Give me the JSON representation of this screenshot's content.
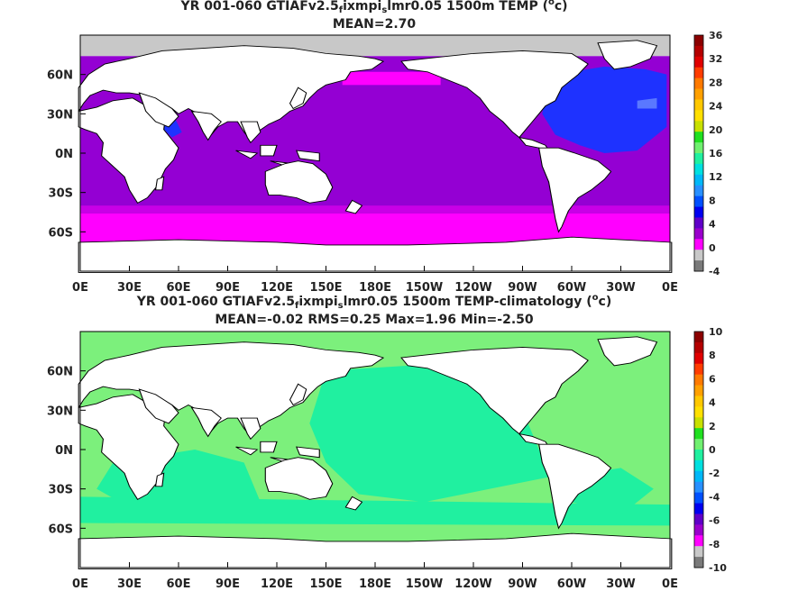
{
  "panels": [
    {
      "title_parts": [
        "YR 001-060 GTIAFv2.5",
        "ixmpi",
        "lmr0.05 1500m TEMP (",
        "c)"
      ],
      "title_sub": "f",
      "title_sub2": "s",
      "title_deg": "o",
      "subtitle": "MEAN=2.70",
      "colorbar_labels": [
        "36",
        "32",
        "28",
        "24",
        "20",
        "16",
        "12",
        "8",
        "4",
        "0",
        "-4"
      ],
      "colorbar_colors": [
        "#8b0000",
        "#b40000",
        "#e00000",
        "#ff3c00",
        "#ff7a00",
        "#ffa000",
        "#ffc800",
        "#ffe000",
        "#c8e000",
        "#20e020",
        "#70f070",
        "#20f0a0",
        "#00e0e0",
        "#00b8f8",
        "#2890ff",
        "#0050ff",
        "#0000f0",
        "#6000c8",
        "#9a00cc",
        "#ff00ff",
        "#c8c8c8",
        "#7a7a7a"
      ]
    },
    {
      "title_parts": [
        "YR 001-060 GTIAFv2.5",
        "ixmpi",
        "lmr0.05 1500m TEMP-climatology (",
        "c)"
      ],
      "title_sub": "f",
      "title_sub2": "s",
      "title_deg": "o",
      "subtitle": "MEAN=-0.02   RMS=0.25   Max=1.96   Min=-2.50",
      "colorbar_labels": [
        "10",
        "8",
        "6",
        "4",
        "2",
        "0",
        "-2",
        "-4",
        "-6",
        "-8",
        "-10"
      ],
      "colorbar_colors": [
        "#8b0000",
        "#b40000",
        "#e00000",
        "#ff3c00",
        "#ff7a00",
        "#ffa000",
        "#ffc800",
        "#ffe000",
        "#c8e000",
        "#20e020",
        "#70f070",
        "#20f0a0",
        "#00e0e0",
        "#00b8f8",
        "#2890ff",
        "#0050ff",
        "#0000f0",
        "#6000c8",
        "#9a00cc",
        "#ff00ff",
        "#c8c8c8",
        "#7a7a7a"
      ]
    }
  ],
  "lat_labels": [
    "60N",
    "30N",
    "0N",
    "30S",
    "60S"
  ],
  "lon_labels": [
    "0E",
    "30E",
    "60E",
    "90E",
    "120E",
    "150E",
    "180E",
    "150W",
    "120W",
    "90W",
    "60W",
    "30W",
    "0E"
  ],
  "colors": {
    "p1_ocean": "#9400d3",
    "p1_north_atlantic": "#1e32ff",
    "p1_southern": "#ff00ff",
    "p1_arctic_gray": "#c8c8c8",
    "p2_ocean": "#20f0a0",
    "p2_light": "#7cf07c",
    "land": "#ffffff",
    "coast": "#000000"
  }
}
